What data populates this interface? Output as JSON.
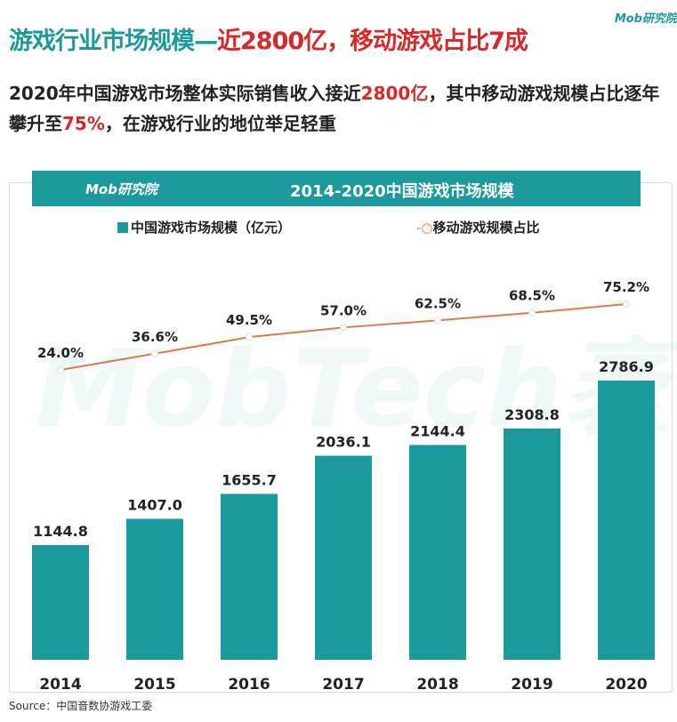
{
  "header": {
    "title_part1": "游戏行业市场规模—",
    "title_part2": "近2800亿，移动游戏占比7成",
    "logo_text": "Mob研究院",
    "subtitle_a": "2020年中国游戏市场整体实际销售收入接近",
    "subtitle_b": "2800亿",
    "subtitle_c": "，其中移动游戏规模占比逐年攀升至",
    "subtitle_d": "75%",
    "subtitle_e": "，在游戏行业的地位举足轻重"
  },
  "watermark": "MobTech袤博",
  "source": "Source：中国音数协游戏工委",
  "colors": {
    "bar": "#1c9a9b",
    "line": "#e0794a",
    "accent_red": "#d42a2a"
  },
  "chart_data": {
    "type": "bar+line",
    "title": "2014-2020中国游戏市场规模",
    "banner_logo": "Mob研究院",
    "categories": [
      "2014",
      "2015",
      "2016",
      "2017",
      "2018",
      "2019",
      "2020"
    ],
    "series": [
      {
        "name": "中国游戏市场规模（亿元）",
        "type": "bar",
        "values": [
          1144.8,
          1407.0,
          1655.7,
          2036.1,
          2144.4,
          2308.8,
          2786.9
        ],
        "labels": [
          "1144.8",
          "1407.0",
          "1655.7",
          "2036.1",
          "2144.4",
          "2308.8",
          "2786.9"
        ]
      },
      {
        "name": "移动游戏规模占比",
        "type": "line",
        "values": [
          24.0,
          36.6,
          49.5,
          57.0,
          62.5,
          68.5,
          75.2
        ],
        "labels": [
          "24.0%",
          "36.6%",
          "49.5%",
          "57.0%",
          "62.5%",
          "68.5%",
          "75.2%"
        ]
      }
    ],
    "legend_placement": "top",
    "grid": false
  }
}
